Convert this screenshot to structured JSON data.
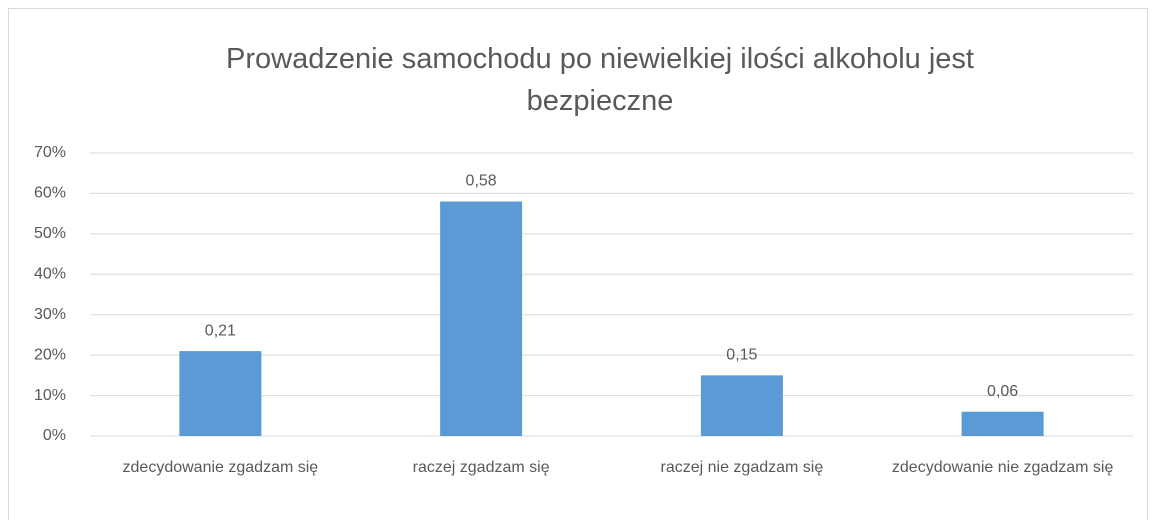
{
  "chart_data": {
    "type": "bar",
    "title": "Prowadzenie samochodu po niewielkiej ilości alkoholu jest bezpieczne",
    "categories": [
      "zdecydowanie zgadzam się",
      "raczej zgadzam się",
      "raczej nie zgadzam się",
      "zdecydowanie nie zgadzam się"
    ],
    "values": [
      21,
      58,
      15,
      6
    ],
    "value_labels": [
      "0,21",
      "0,58",
      "0,15",
      "0,06"
    ],
    "color": "#5b9bd5",
    "ylim": [
      0,
      70
    ],
    "yticks": [
      {
        "value": 0,
        "label": "0%"
      },
      {
        "value": 10,
        "label": "10%"
      },
      {
        "value": 20,
        "label": "20%"
      },
      {
        "value": 30,
        "label": "30%"
      },
      {
        "value": 40,
        "label": "40%"
      },
      {
        "value": 50,
        "label": "50%"
      },
      {
        "value": 60,
        "label": "60%"
      },
      {
        "value": 70,
        "label": "70%"
      }
    ],
    "grid": true
  }
}
